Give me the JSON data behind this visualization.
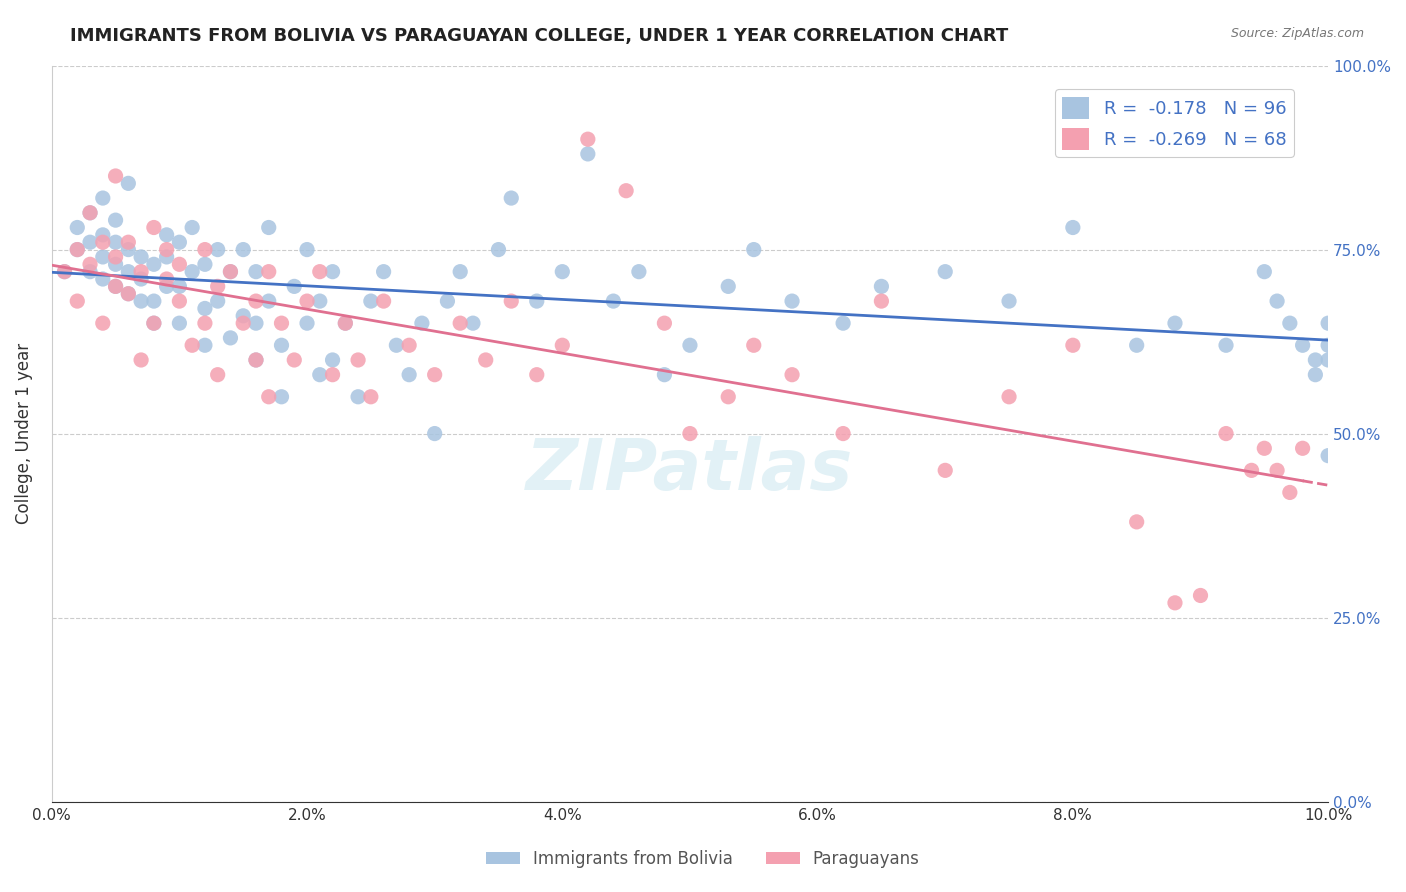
{
  "title": "IMMIGRANTS FROM BOLIVIA VS PARAGUAYAN COLLEGE, UNDER 1 YEAR CORRELATION CHART",
  "source": "Source: ZipAtlas.com",
  "ylabel": "College, Under 1 year",
  "xlabel_ticks": [
    "0.0%",
    "2.0%",
    "4.0%",
    "6.0%",
    "8.0%",
    "10.0%"
  ],
  "ylabel_ticks": [
    "0.0%",
    "25.0%",
    "50.0%",
    "75.0%",
    "100.0%"
  ],
  "xmin": 0.0,
  "xmax": 0.1,
  "ymin": 0.0,
  "ymax": 1.0,
  "r_bolivia": -0.178,
  "n_bolivia": 96,
  "r_paraguayan": -0.269,
  "n_paraguayan": 68,
  "color_bolivia": "#a8c4e0",
  "color_paraguayan": "#f4a0b0",
  "line_color_bolivia": "#4472c4",
  "line_color_paraguayan": "#e07090",
  "watermark": "ZIPatlas",
  "bolivia_x": [
    0.001,
    0.002,
    0.002,
    0.003,
    0.003,
    0.003,
    0.004,
    0.004,
    0.004,
    0.004,
    0.005,
    0.005,
    0.005,
    0.005,
    0.006,
    0.006,
    0.006,
    0.006,
    0.007,
    0.007,
    0.007,
    0.008,
    0.008,
    0.008,
    0.009,
    0.009,
    0.009,
    0.01,
    0.01,
    0.01,
    0.011,
    0.011,
    0.012,
    0.012,
    0.012,
    0.013,
    0.013,
    0.014,
    0.014,
    0.015,
    0.015,
    0.016,
    0.016,
    0.016,
    0.017,
    0.017,
    0.018,
    0.018,
    0.019,
    0.02,
    0.02,
    0.021,
    0.021,
    0.022,
    0.022,
    0.023,
    0.024,
    0.025,
    0.026,
    0.027,
    0.028,
    0.029,
    0.03,
    0.031,
    0.032,
    0.033,
    0.035,
    0.036,
    0.038,
    0.04,
    0.042,
    0.044,
    0.046,
    0.048,
    0.05,
    0.053,
    0.055,
    0.058,
    0.062,
    0.065,
    0.07,
    0.075,
    0.08,
    0.085,
    0.088,
    0.092,
    0.095,
    0.096,
    0.097,
    0.098,
    0.099,
    0.099,
    0.1,
    0.1,
    0.1,
    0.1
  ],
  "bolivia_y": [
    0.72,
    0.75,
    0.78,
    0.72,
    0.76,
    0.8,
    0.71,
    0.74,
    0.77,
    0.82,
    0.7,
    0.73,
    0.76,
    0.79,
    0.69,
    0.72,
    0.75,
    0.84,
    0.68,
    0.71,
    0.74,
    0.65,
    0.68,
    0.73,
    0.7,
    0.74,
    0.77,
    0.65,
    0.7,
    0.76,
    0.72,
    0.78,
    0.62,
    0.67,
    0.73,
    0.68,
    0.75,
    0.63,
    0.72,
    0.66,
    0.75,
    0.6,
    0.65,
    0.72,
    0.68,
    0.78,
    0.55,
    0.62,
    0.7,
    0.65,
    0.75,
    0.58,
    0.68,
    0.6,
    0.72,
    0.65,
    0.55,
    0.68,
    0.72,
    0.62,
    0.58,
    0.65,
    0.5,
    0.68,
    0.72,
    0.65,
    0.75,
    0.82,
    0.68,
    0.72,
    0.88,
    0.68,
    0.72,
    0.58,
    0.62,
    0.7,
    0.75,
    0.68,
    0.65,
    0.7,
    0.72,
    0.68,
    0.78,
    0.62,
    0.65,
    0.62,
    0.72,
    0.68,
    0.65,
    0.62,
    0.6,
    0.58,
    0.65,
    0.62,
    0.6,
    0.47
  ],
  "paraguayan_x": [
    0.001,
    0.002,
    0.002,
    0.003,
    0.003,
    0.004,
    0.004,
    0.005,
    0.005,
    0.005,
    0.006,
    0.006,
    0.007,
    0.007,
    0.008,
    0.008,
    0.009,
    0.009,
    0.01,
    0.01,
    0.011,
    0.012,
    0.012,
    0.013,
    0.013,
    0.014,
    0.015,
    0.016,
    0.016,
    0.017,
    0.017,
    0.018,
    0.019,
    0.02,
    0.021,
    0.022,
    0.023,
    0.024,
    0.025,
    0.026,
    0.028,
    0.03,
    0.032,
    0.034,
    0.036,
    0.038,
    0.04,
    0.042,
    0.045,
    0.048,
    0.05,
    0.053,
    0.055,
    0.058,
    0.062,
    0.065,
    0.07,
    0.075,
    0.08,
    0.085,
    0.088,
    0.09,
    0.092,
    0.094,
    0.095,
    0.096,
    0.097,
    0.098
  ],
  "paraguayan_y": [
    0.72,
    0.75,
    0.68,
    0.8,
    0.73,
    0.76,
    0.65,
    0.7,
    0.74,
    0.85,
    0.69,
    0.76,
    0.72,
    0.6,
    0.78,
    0.65,
    0.71,
    0.75,
    0.68,
    0.73,
    0.62,
    0.75,
    0.65,
    0.7,
    0.58,
    0.72,
    0.65,
    0.68,
    0.6,
    0.72,
    0.55,
    0.65,
    0.6,
    0.68,
    0.72,
    0.58,
    0.65,
    0.6,
    0.55,
    0.68,
    0.62,
    0.58,
    0.65,
    0.6,
    0.68,
    0.58,
    0.62,
    0.9,
    0.83,
    0.65,
    0.5,
    0.55,
    0.62,
    0.58,
    0.5,
    0.68,
    0.45,
    0.55,
    0.62,
    0.38,
    0.27,
    0.28,
    0.5,
    0.45,
    0.48,
    0.45,
    0.42,
    0.48
  ]
}
